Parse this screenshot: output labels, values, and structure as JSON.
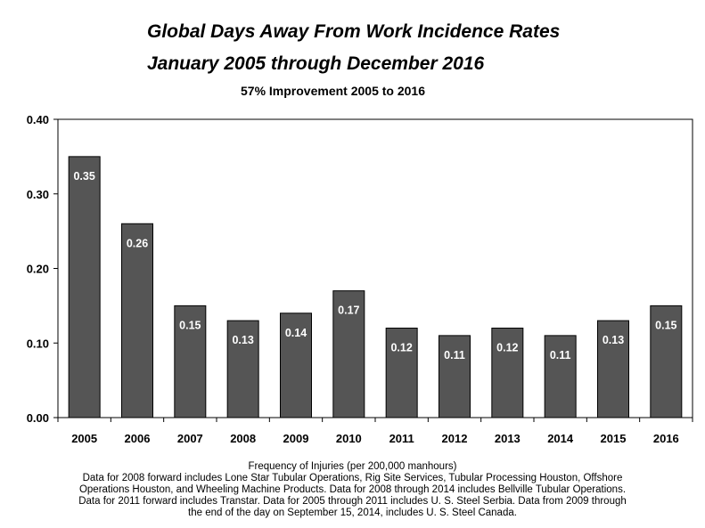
{
  "chart_data": {
    "type": "bar",
    "title": "Global Days Away From Work Incidence Rates",
    "title_line2": "January 2005 through December 2016",
    "subtitle": "57% Improvement 2005 to 2016",
    "categories": [
      "2005",
      "2006",
      "2007",
      "2008",
      "2009",
      "2010",
      "2011",
      "2012",
      "2013",
      "2014",
      "2015",
      "2016"
    ],
    "values": [
      0.35,
      0.26,
      0.15,
      0.13,
      0.14,
      0.17,
      0.12,
      0.11,
      0.12,
      0.11,
      0.13,
      0.15
    ],
    "value_labels": [
      "0.35",
      "0.26",
      "0.15",
      "0.13",
      "0.14",
      "0.17",
      "0.12",
      "0.11",
      "0.12",
      "0.11",
      "0.13",
      "0.15"
    ],
    "yticks": [
      "0.00",
      "0.10",
      "0.20",
      "0.30",
      "0.40"
    ],
    "ytick_values": [
      0,
      0.1,
      0.2,
      0.3,
      0.4
    ],
    "ylim": [
      0,
      0.4
    ],
    "bar_color": "#555555",
    "grid": false
  },
  "footnote": {
    "line1": "Frequency of Injuries (per 200,000 manhours)",
    "line2": "Data for 2008 forward includes Lone Star Tubular Operations, Rig Site Services, Tubular Processing  Houston, Offshore",
    "line3": "Operations Houston, and Wheeling Machine Products.  Data for 2008 through 2014 includes Bellville Tubular Operations.",
    "line4": "Data for 2011 forward includes Transtar.  Data for 2005 through 2011 includes U. S. Steel Serbia.  Data from 2009 through",
    "line5": "the end of the day on September 15, 2014, includes U. S. Steel Canada."
  }
}
